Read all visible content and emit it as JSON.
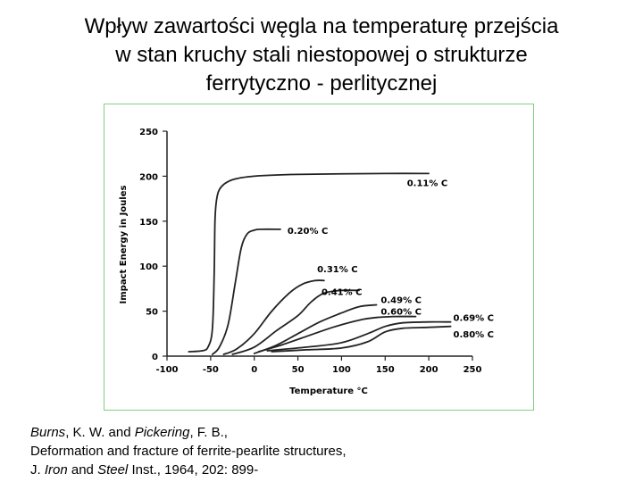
{
  "slide": {
    "title_lines": [
      "Wpływ zawartości węgla na temperaturę przejścia",
      "w stan kruchy stali niestopowej o strukturze",
      "ferrytyczno - perlitycznej"
    ]
  },
  "citation": {
    "line1_author1": "Burns",
    "line1_mid": ", K. W. and ",
    "line1_author2": "Pickering",
    "line1_end": ", F. B.,",
    "line2": "Deformation and fracture of ferrite-pearlite structures,",
    "line3_prefix": "J. ",
    "line3_iron": "Iron",
    "line3_and": " and ",
    "line3_steel": "Steel",
    "line3_end": " Inst., 1964, 202: 899-"
  },
  "chart_data": {
    "type": "line",
    "xlabel": "Temperature   °C",
    "ylabel": "Impact Energy in Joules",
    "xlim": [
      -100,
      250
    ],
    "ylim": [
      0,
      250
    ],
    "x_ticks": [
      -100,
      -50,
      0,
      50,
      100,
      150,
      200,
      250
    ],
    "y_ticks": [
      0,
      50,
      100,
      150,
      200,
      250
    ],
    "grid": false,
    "line_color": "#222222",
    "series": [
      {
        "name": "0.11% C",
        "label_at": [
          175,
          193
        ],
        "points": [
          [
            -75,
            5
          ],
          [
            -60,
            6
          ],
          [
            -53,
            10
          ],
          [
            -48,
            30
          ],
          [
            -46,
            90
          ],
          [
            -45,
            150
          ],
          [
            -43,
            175
          ],
          [
            -38,
            188
          ],
          [
            -25,
            196
          ],
          [
            0,
            200
          ],
          [
            50,
            202
          ],
          [
            150,
            203
          ],
          [
            200,
            203
          ]
        ]
      },
      {
        "name": "0.20% C",
        "label_at": [
          38,
          140
        ],
        "points": [
          [
            -48,
            2
          ],
          [
            -40,
            10
          ],
          [
            -30,
            35
          ],
          [
            -22,
            80
          ],
          [
            -15,
            120
          ],
          [
            -8,
            136
          ],
          [
            0,
            140
          ],
          [
            8,
            141
          ],
          [
            30,
            141
          ]
        ]
      },
      {
        "name": "0.31% C",
        "label_at": [
          72,
          97
        ],
        "points": [
          [
            -35,
            2
          ],
          [
            -20,
            8
          ],
          [
            0,
            25
          ],
          [
            20,
            50
          ],
          [
            40,
            70
          ],
          [
            55,
            80
          ],
          [
            70,
            84
          ],
          [
            80,
            84
          ]
        ]
      },
      {
        "name": "0.41% C",
        "label_at": [
          77,
          72
        ],
        "points": [
          [
            -25,
            2
          ],
          [
            0,
            10
          ],
          [
            25,
            28
          ],
          [
            50,
            45
          ],
          [
            65,
            60
          ],
          [
            80,
            70
          ],
          [
            100,
            73
          ],
          [
            120,
            73
          ]
        ]
      },
      {
        "name": "0.49% C",
        "label_at": [
          145,
          63
        ],
        "points": [
          [
            0,
            3
          ],
          [
            25,
            12
          ],
          [
            50,
            25
          ],
          [
            75,
            38
          ],
          [
            100,
            48
          ],
          [
            120,
            55
          ],
          [
            140,
            57
          ]
        ]
      },
      {
        "name": "0.60% C",
        "label_at": [
          145,
          50
        ],
        "points": [
          [
            5,
            5
          ],
          [
            30,
            12
          ],
          [
            60,
            22
          ],
          [
            90,
            32
          ],
          [
            120,
            40
          ],
          [
            140,
            43
          ],
          [
            160,
            44
          ],
          [
            185,
            44
          ]
        ]
      },
      {
        "name": "0.69% C",
        "label_at": [
          228,
          43
        ],
        "points": [
          [
            15,
            6
          ],
          [
            60,
            10
          ],
          [
            100,
            15
          ],
          [
            130,
            25
          ],
          [
            150,
            33
          ],
          [
            170,
            37
          ],
          [
            200,
            38
          ],
          [
            225,
            38
          ]
        ]
      },
      {
        "name": "0.80% C",
        "label_at": [
          228,
          25
        ],
        "points": [
          [
            20,
            5
          ],
          [
            60,
            7
          ],
          [
            100,
            9
          ],
          [
            130,
            16
          ],
          [
            150,
            27
          ],
          [
            170,
            31
          ],
          [
            200,
            32
          ],
          [
            225,
            33
          ]
        ]
      }
    ]
  }
}
